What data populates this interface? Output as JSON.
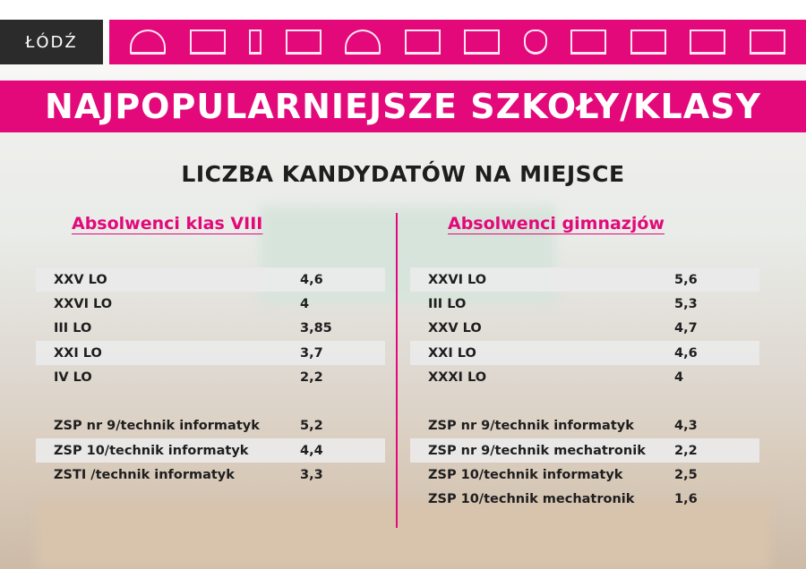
{
  "logo": {
    "text": "ŁÓDŹ"
  },
  "header_icons": [
    "railway-station-icon",
    "pavilion-icon",
    "monument-icon",
    "factory-icon",
    "arena-icon",
    "gate-icon",
    "tower-block-icon",
    "heart-icon",
    "palace-icon",
    "ship-icon",
    "villa-icon",
    "office-building-icon"
  ],
  "title": "NAJPOPULARNIEJSZE SZKOŁY/KLASY",
  "subtitle": "LICZBA KANDYDATÓW NA MIEJSCE",
  "colors": {
    "accent": "#e3097a",
    "dark": "#2b2b2b"
  },
  "left": {
    "heading": "Absolwenci klas VIII",
    "group1": [
      {
        "name": "XXV LO",
        "value": "4,6"
      },
      {
        "name": "XXVI LO",
        "value": "4"
      },
      {
        "name": "III LO",
        "value": "3,85"
      },
      {
        "name": "XXI LO",
        "value": "3,7"
      },
      {
        "name": "IV LO",
        "value": "2,2"
      }
    ],
    "group2": [
      {
        "name": "ZSP nr 9/technik informatyk",
        "value": "5,2"
      },
      {
        "name": "ZSP 10/technik informatyk",
        "value": "4,4"
      },
      {
        "name": "ZSTI /technik informatyk",
        "value": "3,3"
      }
    ]
  },
  "right": {
    "heading": "Absolwenci gimnazjów",
    "group1": [
      {
        "name": "XXVI LO",
        "value": "5,6"
      },
      {
        "name": "III LO",
        "value": "5,3"
      },
      {
        "name": "XXV LO",
        "value": "4,7"
      },
      {
        "name": "XXI LO",
        "value": "4,6"
      },
      {
        "name": "XXXI LO",
        "value": "4"
      }
    ],
    "group2": [
      {
        "name": "ZSP nr 9/technik informatyk",
        "value": "4,3"
      },
      {
        "name": "ZSP nr 9/technik mechatronik",
        "value": "2,2"
      },
      {
        "name": "ZSP 10/technik informatyk",
        "value": "2,5"
      },
      {
        "name": "ZSP 10/technik mechatronik",
        "value": "1,6"
      }
    ]
  }
}
